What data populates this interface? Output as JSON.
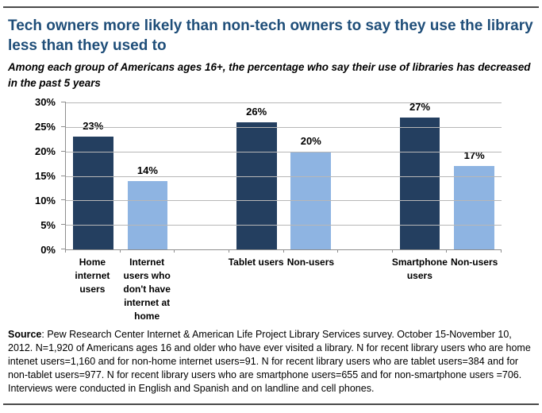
{
  "header": {
    "title": "Tech owners more likely than non-tech owners to say they use the library less than they used to",
    "subtitle": "Among each group of Americans ages 16+, the percentage who say their use of libraries has decreased in the past 5 years"
  },
  "chart_data": {
    "type": "bar",
    "title": "Tech owners more likely than non-tech owners to say they use the library less than they used to",
    "subtitle": "Among each group of Americans ages 16+, the percentage who say their use of libraries has decreased in the past 5 years",
    "categories": [
      "Home internet users",
      "Internet users who don't have internet at home",
      "Tablet users",
      "Non-users",
      "Smartphone users",
      "Non-users"
    ],
    "categories_wrapped": [
      "Home\ninternet\nusers",
      "Internet\nusers who\ndon't have\ninternet at\nhome",
      "Tablet users",
      "Non-users",
      "Smartphone\nusers",
      "Non-users"
    ],
    "values": [
      23,
      14,
      26,
      20,
      27,
      17
    ],
    "data_labels": [
      "23%",
      "14%",
      "26%",
      "20%",
      "27%",
      "17%"
    ],
    "bar_colors": [
      "#243F60",
      "#8EB4E2",
      "#243F60",
      "#8EB4E2",
      "#243F60",
      "#8EB4E2"
    ],
    "colors": {
      "dark_blue": "#243F60",
      "light_blue": "#8EB4E2",
      "title_blue": "#1F4E79",
      "gridline_gray": "#B7B7B7"
    },
    "xlabel": "",
    "ylabel": "",
    "ylim": [
      0,
      30
    ],
    "ytick_labels": [
      "0%",
      "5%",
      "10%",
      "15%",
      "20%",
      "25%",
      "30%"
    ],
    "grid": true,
    "legend": "none",
    "total_slots": 8,
    "slot_of_category": [
      0,
      1,
      3,
      4,
      6,
      7
    ]
  },
  "source": {
    "label": "Source",
    "text": ": Pew Research Center Internet & American Life Project Library Services survey. October 15-November 10, 2012. N=1,920 of Americans ages 16 and older who have ever visited a library. N for recent library users who are home intenet users=1,160 and for non-home internet users=91. N for recent library users who are tablet users=384 and for non-tablet users=977. N for recent library users who are smartphone users=655 and for non-smartphone users =706. Interviews were conducted in English and Spanish and on landline and cell phones."
  }
}
